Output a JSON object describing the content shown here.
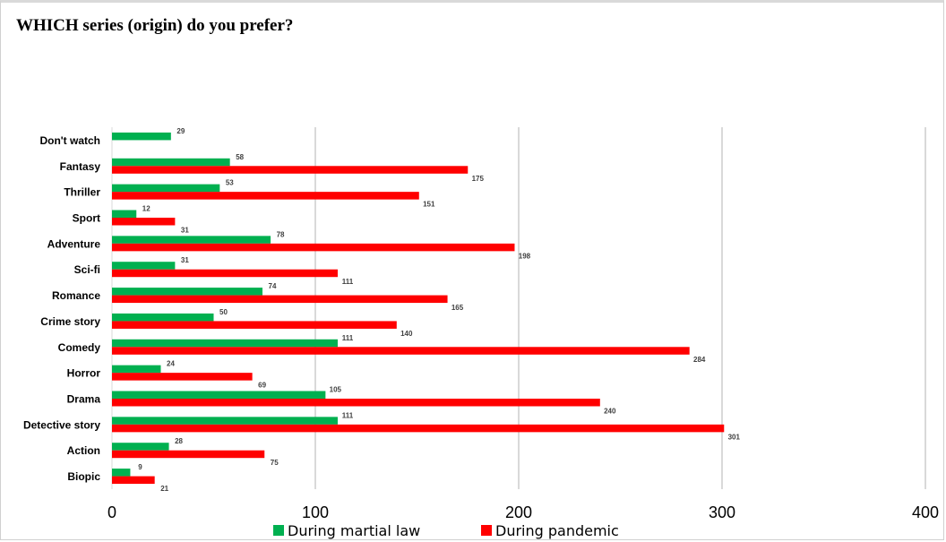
{
  "chart_data": {
    "type": "bar",
    "orientation": "horizontal",
    "title": "WHICH series (origin) do you prefer?",
    "xlabel": "",
    "ylabel": "",
    "xlim": [
      0,
      400
    ],
    "xticks": [
      0,
      100,
      200,
      300,
      400
    ],
    "grid": true,
    "legend_position": "bottom",
    "categories": [
      "Don't watch",
      "Fantasy",
      "Thriller",
      "Sport",
      "Adventure",
      "Sci-fi",
      "Romance",
      "Crime story",
      "Comedy",
      "Horror",
      "Drama",
      "Detective story",
      "Action",
      "Biopic"
    ],
    "series": [
      {
        "name": "During martial law",
        "color": "#00b050",
        "values": [
          29,
          58,
          53,
          12,
          78,
          31,
          74,
          50,
          111,
          24,
          105,
          111,
          28,
          9
        ]
      },
      {
        "name": "During pandemic",
        "color": "#ff0000",
        "values": [
          null,
          175,
          151,
          31,
          198,
          111,
          165,
          140,
          284,
          69,
          240,
          301,
          75,
          21
        ]
      }
    ]
  }
}
